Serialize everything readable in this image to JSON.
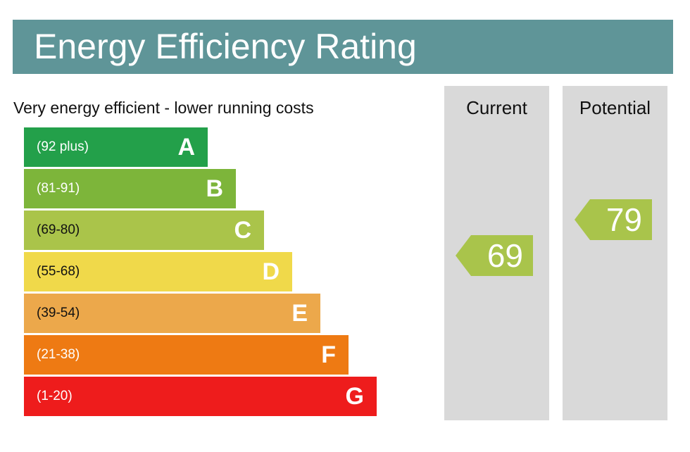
{
  "header": {
    "title": "Energy Efficiency Rating"
  },
  "chart_data": {
    "type": "bar",
    "title": "Energy Efficiency Rating",
    "subtitle": "Very energy efficient - lower running costs",
    "bands": [
      {
        "letter": "A",
        "range": "(92 plus)",
        "min": 92,
        "max": 100,
        "color": "#23a04a",
        "text_color": "#ffffff"
      },
      {
        "letter": "B",
        "range": "(81-91)",
        "min": 81,
        "max": 91,
        "color": "#7db53a",
        "text_color": "#ffffff"
      },
      {
        "letter": "C",
        "range": "(69-80)",
        "min": 69,
        "max": 80,
        "color": "#aac44a",
        "text_color": "#111111"
      },
      {
        "letter": "D",
        "range": "(55-68)",
        "min": 55,
        "max": 68,
        "color": "#f0d94a",
        "text_color": "#111111"
      },
      {
        "letter": "E",
        "range": "(39-54)",
        "min": 39,
        "max": 54,
        "color": "#eca84b",
        "text_color": "#111111"
      },
      {
        "letter": "F",
        "range": "(21-38)",
        "min": 21,
        "max": 38,
        "color": "#ee7a13",
        "text_color": "#ffffff"
      },
      {
        "letter": "G",
        "range": "(1-20)",
        "min": 1,
        "max": 20,
        "color": "#ee1c1c",
        "text_color": "#ffffff"
      }
    ],
    "current": {
      "label": "Current",
      "value": 69,
      "display": "69",
      "color": "#a9c44b"
    },
    "potential": {
      "label": "Potential",
      "value": 79,
      "display": "79",
      "color": "#a9c44b"
    }
  }
}
